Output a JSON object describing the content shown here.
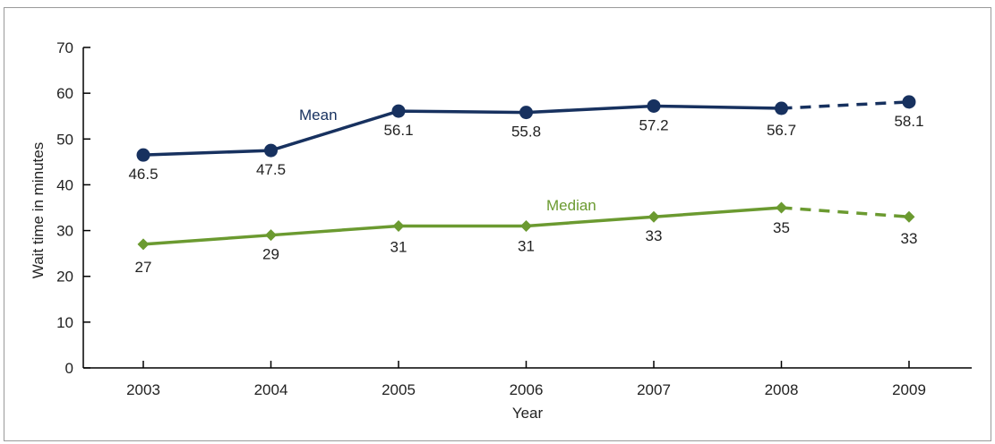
{
  "chart_data": {
    "type": "line",
    "title": "",
    "xlabel": "Year",
    "ylabel": "Wait time in minutes",
    "categories": [
      "2003",
      "2004",
      "2005",
      "2006",
      "2007",
      "2008",
      "2009"
    ],
    "ylim": [
      0,
      70
    ],
    "yticks": [
      0,
      10,
      20,
      30,
      40,
      50,
      60,
      70
    ],
    "grid": false,
    "series": [
      {
        "name": "Mean",
        "values": [
          46.5,
          47.5,
          56.1,
          55.8,
          57.2,
          56.7,
          58.1
        ],
        "labels": [
          "46.5",
          "47.5",
          "56.1",
          "55.8",
          "57.2",
          "56.7",
          "58.1"
        ],
        "color": "#17315f",
        "marker": "circle",
        "dashed_last_segment": true
      },
      {
        "name": "Median",
        "values": [
          27,
          29,
          31,
          31,
          33,
          35,
          33
        ],
        "labels": [
          "27",
          "29",
          "31",
          "31",
          "33",
          "35",
          "33"
        ],
        "color": "#6b9a30",
        "marker": "diamond",
        "dashed_last_segment": true
      }
    ]
  }
}
